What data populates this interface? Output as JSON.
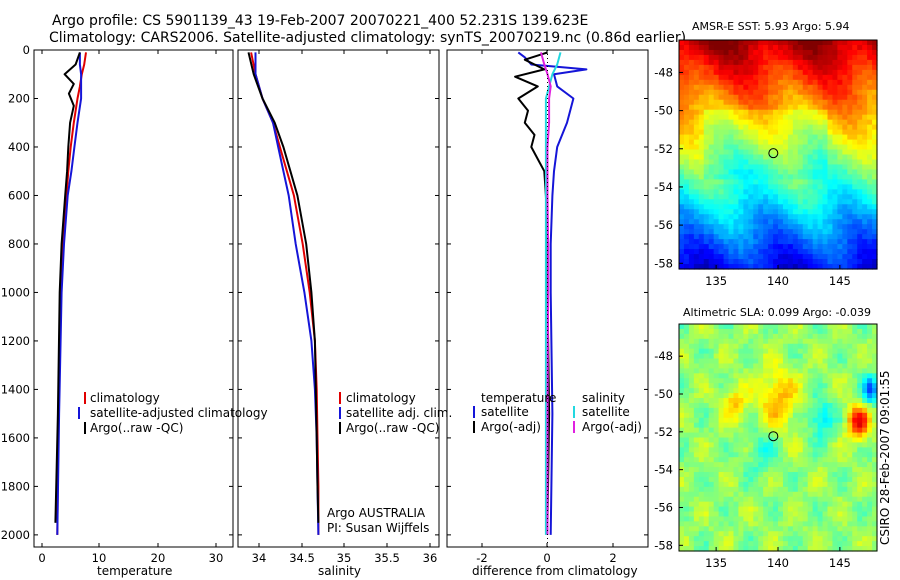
{
  "header": {
    "line1": "Argo profile: CS 5901139_43 19-Feb-2007 20070221_400 52.231S 139.623E",
    "line2": "Climatology: CARS2006. Satellite-adjusted climatology: synTS_20070219.nc (0.86d earlier)"
  },
  "colors": {
    "clim": "#e00000",
    "sat": "#1515d8",
    "argo": "#000000",
    "sal_sat": "#22d8e0",
    "sal_argo": "#e020e0"
  },
  "credit": "CSIRO 28-Feb-2007 09:01:55",
  "chart_data": [
    {
      "type": "line",
      "panel": "temperature",
      "xlabel": "temperature",
      "xlim": [
        -1.5,
        31
      ],
      "xticks": [
        "0",
        "10",
        "20",
        "30"
      ],
      "ylim": [
        2050,
        0
      ],
      "yticks": [
        "0",
        "200",
        "400",
        "600",
        "800",
        "1000",
        "1200",
        "1400",
        "1600",
        "1800",
        "2000"
      ],
      "legend": [
        "climatology",
        "satellite-adjusted climatology",
        "Argo(..raw -QC)"
      ],
      "series": [
        {
          "name": "climatology",
          "color": "clim",
          "depth": [
            10,
            60,
            100,
            150,
            200,
            300,
            400,
            500,
            600,
            800,
            1000,
            1500,
            2000
          ],
          "values": [
            7.0,
            6.7,
            6.3,
            6.0,
            5.6,
            5.0,
            4.5,
            4.1,
            3.8,
            3.2,
            2.9,
            2.5,
            2.3
          ]
        },
        {
          "name": "satellite-adjusted climatology",
          "color": "sat",
          "depth": [
            10,
            60,
            100,
            150,
            200,
            300,
            400,
            500,
            600,
            800,
            1000,
            1500,
            2000
          ],
          "values": [
            6.0,
            6.0,
            6.2,
            6.2,
            6.2,
            5.6,
            5.1,
            4.6,
            4.0,
            3.4,
            3.0,
            2.6,
            2.3
          ]
        },
        {
          "name": "Argo(..raw -QC)",
          "color": "argo",
          "depth": [
            10,
            60,
            100,
            140,
            180,
            230,
            300,
            400,
            500,
            600,
            800,
            1000,
            1500,
            1950
          ],
          "values": [
            6.0,
            5.3,
            3.5,
            5.0,
            4.2,
            5.0,
            4.4,
            4.1,
            3.9,
            3.6,
            3.0,
            2.7,
            2.4,
            2.0
          ]
        }
      ]
    },
    {
      "type": "line",
      "panel": "salinity",
      "xlabel": "salinity",
      "xlim": [
        33.8,
        36.1
      ],
      "xticks": [
        "34",
        "34.5",
        "35",
        "35.5",
        "36"
      ],
      "ylim": [
        2050,
        0
      ],
      "legend": [
        "climatology",
        "satellite adj. clim.",
        "Argo(..raw -QC)"
      ],
      "annotations": [
        "Argo AUSTRALIA",
        "PI: Susan Wijffels"
      ],
      "series": [
        {
          "name": "climatology",
          "color": "clim",
          "depth": [
            10,
            100,
            200,
            300,
            400,
            500,
            600,
            800,
            1000,
            1200,
            1400,
            1600,
            1800,
            2000
          ],
          "values": [
            33.95,
            34.0,
            34.08,
            34.2,
            34.28,
            34.36,
            34.44,
            34.54,
            34.62,
            34.68,
            34.7,
            34.71,
            34.72,
            34.72
          ]
        },
        {
          "name": "satellite adj. clim.",
          "color": "sat",
          "depth": [
            10,
            100,
            200,
            300,
            400,
            500,
            600,
            800,
            1000,
            1200,
            1400,
            1600,
            1800,
            2000
          ],
          "values": [
            34.0,
            34.0,
            34.08,
            34.2,
            34.26,
            34.32,
            34.38,
            34.46,
            34.56,
            34.64,
            34.68,
            34.7,
            34.71,
            34.72
          ]
        },
        {
          "name": "Argo(..raw -QC)",
          "color": "argo",
          "depth": [
            10,
            100,
            200,
            300,
            400,
            500,
            600,
            800,
            1000,
            1200,
            1400,
            1600,
            1800,
            1950
          ],
          "values": [
            33.92,
            33.98,
            34.08,
            34.22,
            34.32,
            34.4,
            34.48,
            34.58,
            34.64,
            34.68,
            34.69,
            34.7,
            34.71,
            34.72
          ]
        }
      ]
    },
    {
      "type": "line",
      "panel": "difference",
      "xlabel": "difference from climatology",
      "xlim": [
        -3.1,
        3.1
      ],
      "xticks": [
        "-2",
        "0",
        "2"
      ],
      "ylim": [
        2050,
        0
      ],
      "legend_left_title": "temperature",
      "legend_right_title": "salinity",
      "legend": [
        "satellite",
        "Argo(-adj)",
        "satellite",
        "Argo(-adj)"
      ],
      "series": [
        {
          "name": "temperature satellite",
          "color": "sat",
          "depth": [
            10,
            30,
            60,
            80,
            100,
            150,
            200,
            300,
            400,
            500,
            600,
            800,
            1000,
            1500,
            2000
          ],
          "values": [
            -0.9,
            -0.7,
            -0.5,
            1.2,
            0.2,
            0.3,
            0.8,
            0.6,
            0.3,
            0.2,
            0.15,
            0.1,
            0.1,
            0.15,
            0.1
          ]
        },
        {
          "name": "temperature Argo(-adj)",
          "color": "argo",
          "depth": [
            10,
            40,
            80,
            110,
            150,
            200,
            250,
            300,
            350,
            400,
            450,
            500,
            600,
            800,
            1000,
            1500,
            1950
          ],
          "values": [
            0.0,
            -0.7,
            -0.1,
            -1.0,
            -0.3,
            -0.9,
            -0.6,
            -0.7,
            -0.4,
            -0.5,
            -0.3,
            -0.1,
            -0.05,
            0.0,
            0.0,
            0.05,
            0.0
          ]
        },
        {
          "name": "salinity satellite",
          "color": "sal_sat",
          "depth": [
            10,
            60,
            100,
            200,
            300,
            400,
            600,
            800,
            1000,
            1500,
            2000
          ],
          "values": [
            0.4,
            0.3,
            0.15,
            -0.05,
            -0.05,
            -0.05,
            -0.05,
            -0.05,
            -0.05,
            -0.05,
            -0.05
          ]
        },
        {
          "name": "salinity Argo(-adj)",
          "color": "sal_argo",
          "depth": [
            10,
            60,
            100,
            150,
            200,
            300,
            400,
            600,
            800,
            1000,
            1500,
            2000
          ],
          "values": [
            -0.2,
            -0.1,
            0.0,
            0.1,
            0.05,
            0.05,
            0.0,
            0.0,
            0.02,
            0.02,
            0.0,
            0.0
          ]
        }
      ]
    },
    {
      "type": "heatmap",
      "panel": "AMSR-E SST",
      "title": "AMSR-E SST: 5.93 Argo: 5.94",
      "xlim": [
        132,
        148
      ],
      "ylim": [
        -58.3,
        -46.3
      ],
      "xticks": [
        "135",
        "140",
        "145"
      ],
      "yticks": [
        "-48",
        "-50",
        "-52",
        "-54",
        "-56",
        "-58"
      ],
      "marker": {
        "lon": 139.623,
        "lat": -52.231
      }
    },
    {
      "type": "heatmap",
      "panel": "Altimetric SLA",
      "title": "Altimetric SLA: 0.099 Argo: -0.039",
      "xlim": [
        132,
        148
      ],
      "ylim": [
        -58.3,
        -46.3
      ],
      "xticks": [
        "135",
        "140",
        "145"
      ],
      "yticks": [
        "-48",
        "-50",
        "-52",
        "-54",
        "-56",
        "-58"
      ],
      "marker": {
        "lon": 139.623,
        "lat": -52.231
      }
    }
  ]
}
